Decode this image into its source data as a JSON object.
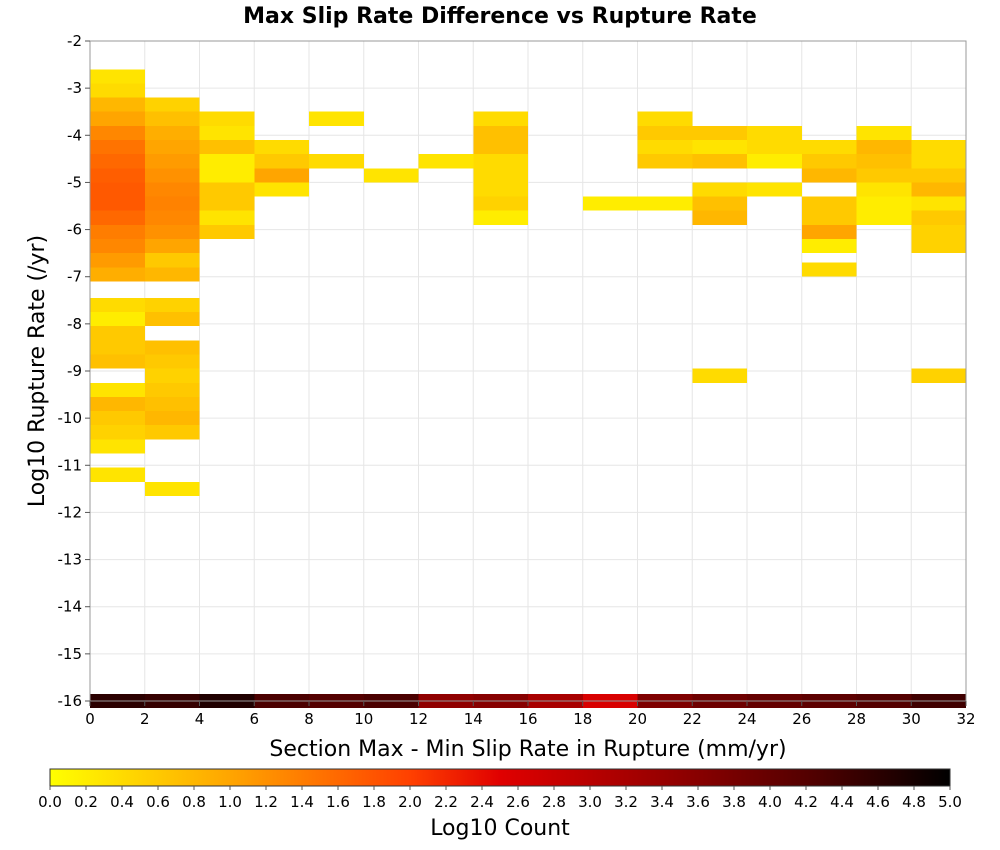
{
  "chart_data": {
    "type": "heatmap",
    "title": "Max Slip Rate Difference vs Rupture Rate",
    "xlabel": "Section Max - Min Slip Rate in Rupture (mm/yr)",
    "ylabel": "Log10 Rupture Rate (/yr)",
    "xlim": [
      0,
      32
    ],
    "ylim": [
      -16,
      -2
    ],
    "x_ticks": [
      0,
      2,
      4,
      6,
      8,
      10,
      12,
      14,
      16,
      18,
      20,
      22,
      24,
      26,
      28,
      30,
      32
    ],
    "y_ticks": [
      -16,
      -15,
      -14,
      -13,
      -12,
      -11,
      -10,
      -9,
      -8,
      -7,
      -6,
      -5,
      -4,
      -3,
      -2
    ],
    "grid": true,
    "x_bin_width": 2,
    "y_bin_height": 0.3,
    "colorbar": {
      "label": "Log10 Count",
      "range": [
        0.0,
        5.0
      ],
      "ticks": [
        "0.0",
        "0.2",
        "0.4",
        "0.6",
        "0.8",
        "1.0",
        "1.2",
        "1.4",
        "1.6",
        "1.8",
        "2.0",
        "2.2",
        "2.4",
        "2.6",
        "2.8",
        "3.0",
        "3.2",
        "3.4",
        "3.6",
        "3.8",
        "4.0",
        "4.2",
        "4.4",
        "4.6",
        "4.8",
        "5.0"
      ],
      "position": "bottom"
    },
    "cells": [
      {
        "x": 0,
        "y": -2.75,
        "v": 0.3
      },
      {
        "x": 0,
        "y": -3.05,
        "v": 0.4
      },
      {
        "x": 0,
        "y": -3.35,
        "v": 0.8
      },
      {
        "x": 0,
        "y": -3.65,
        "v": 1.0
      },
      {
        "x": 0,
        "y": -3.95,
        "v": 1.3
      },
      {
        "x": 0,
        "y": -4.25,
        "v": 1.5
      },
      {
        "x": 0,
        "y": -4.55,
        "v": 1.6
      },
      {
        "x": 0,
        "y": -4.85,
        "v": 1.7
      },
      {
        "x": 0,
        "y": -5.15,
        "v": 1.75
      },
      {
        "x": 0,
        "y": -5.45,
        "v": 1.75
      },
      {
        "x": 0,
        "y": -5.75,
        "v": 1.6
      },
      {
        "x": 0,
        "y": -6.05,
        "v": 1.4
      },
      {
        "x": 0,
        "y": -6.35,
        "v": 1.3
      },
      {
        "x": 0,
        "y": -6.65,
        "v": 1.1
      },
      {
        "x": 0,
        "y": -6.95,
        "v": 0.9
      },
      {
        "x": 0,
        "y": -7.6,
        "v": 0.4
      },
      {
        "x": 0,
        "y": -7.9,
        "v": 0.2
      },
      {
        "x": 0,
        "y": -8.2,
        "v": 0.6
      },
      {
        "x": 0,
        "y": -8.5,
        "v": 0.6
      },
      {
        "x": 0,
        "y": -8.8,
        "v": 0.7
      },
      {
        "x": 0,
        "y": -9.4,
        "v": 0.3
      },
      {
        "x": 0,
        "y": -9.7,
        "v": 0.8
      },
      {
        "x": 0,
        "y": -10.0,
        "v": 0.6
      },
      {
        "x": 0,
        "y": -10.3,
        "v": 0.5
      },
      {
        "x": 0,
        "y": -10.6,
        "v": 0.3
      },
      {
        "x": 0,
        "y": -11.2,
        "v": 0.3
      },
      {
        "x": 2,
        "y": -3.35,
        "v": 0.5
      },
      {
        "x": 2,
        "y": -3.65,
        "v": 0.7
      },
      {
        "x": 2,
        "y": -3.95,
        "v": 0.9
      },
      {
        "x": 2,
        "y": -4.25,
        "v": 1.0
      },
      {
        "x": 2,
        "y": -4.55,
        "v": 1.1
      },
      {
        "x": 2,
        "y": -4.85,
        "v": 1.2
      },
      {
        "x": 2,
        "y": -5.15,
        "v": 1.3
      },
      {
        "x": 2,
        "y": -5.45,
        "v": 1.35
      },
      {
        "x": 2,
        "y": -5.75,
        "v": 1.3
      },
      {
        "x": 2,
        "y": -6.05,
        "v": 1.2
      },
      {
        "x": 2,
        "y": -6.35,
        "v": 1.0
      },
      {
        "x": 2,
        "y": -6.65,
        "v": 0.6
      },
      {
        "x": 2,
        "y": -6.95,
        "v": 0.8
      },
      {
        "x": 2,
        "y": -7.6,
        "v": 0.5
      },
      {
        "x": 2,
        "y": -7.9,
        "v": 0.7
      },
      {
        "x": 2,
        "y": -8.5,
        "v": 0.7
      },
      {
        "x": 2,
        "y": -8.8,
        "v": 0.6
      },
      {
        "x": 2,
        "y": -9.1,
        "v": 0.5
      },
      {
        "x": 2,
        "y": -9.4,
        "v": 0.6
      },
      {
        "x": 2,
        "y": -9.7,
        "v": 0.7
      },
      {
        "x": 2,
        "y": -10.0,
        "v": 0.8
      },
      {
        "x": 2,
        "y": -10.3,
        "v": 0.6
      },
      {
        "x": 2,
        "y": -11.5,
        "v": 0.3
      },
      {
        "x": 4,
        "y": -3.65,
        "v": 0.4
      },
      {
        "x": 4,
        "y": -3.95,
        "v": 0.3
      },
      {
        "x": 4,
        "y": -4.25,
        "v": 0.7
      },
      {
        "x": 4,
        "y": -4.55,
        "v": 0.2
      },
      {
        "x": 4,
        "y": -4.85,
        "v": 0.2
      },
      {
        "x": 4,
        "y": -5.15,
        "v": 0.6
      },
      {
        "x": 4,
        "y": -5.45,
        "v": 0.6
      },
      {
        "x": 4,
        "y": -5.75,
        "v": 0.3
      },
      {
        "x": 4,
        "y": -6.05,
        "v": 0.6
      },
      {
        "x": 6,
        "y": -4.25,
        "v": 0.4
      },
      {
        "x": 6,
        "y": -4.55,
        "v": 0.6
      },
      {
        "x": 6,
        "y": -4.85,
        "v": 1.0
      },
      {
        "x": 6,
        "y": -5.15,
        "v": 0.3
      },
      {
        "x": 8,
        "y": -3.65,
        "v": 0.3
      },
      {
        "x": 8,
        "y": -4.55,
        "v": 0.4
      },
      {
        "x": 10,
        "y": -4.85,
        "v": 0.3
      },
      {
        "x": 12,
        "y": -4.55,
        "v": 0.3
      },
      {
        "x": 14,
        "y": -3.65,
        "v": 0.4
      },
      {
        "x": 14,
        "y": -3.95,
        "v": 0.7
      },
      {
        "x": 14,
        "y": -4.25,
        "v": 0.7
      },
      {
        "x": 14,
        "y": -4.55,
        "v": 0.4
      },
      {
        "x": 14,
        "y": -4.85,
        "v": 0.4
      },
      {
        "x": 14,
        "y": -5.15,
        "v": 0.4
      },
      {
        "x": 14,
        "y": -5.45,
        "v": 0.5
      },
      {
        "x": 14,
        "y": -5.75,
        "v": 0.2
      },
      {
        "x": 18,
        "y": -5.45,
        "v": 0.2
      },
      {
        "x": 20,
        "y": -3.65,
        "v": 0.4
      },
      {
        "x": 20,
        "y": -3.95,
        "v": 0.6
      },
      {
        "x": 20,
        "y": -4.25,
        "v": 0.4
      },
      {
        "x": 20,
        "y": -4.55,
        "v": 0.6
      },
      {
        "x": 20,
        "y": -5.45,
        "v": 0.2
      },
      {
        "x": 22,
        "y": -3.95,
        "v": 0.6
      },
      {
        "x": 22,
        "y": -4.25,
        "v": 0.3
      },
      {
        "x": 22,
        "y": -4.55,
        "v": 0.7
      },
      {
        "x": 22,
        "y": -5.15,
        "v": 0.4
      },
      {
        "x": 22,
        "y": -5.45,
        "v": 0.7
      },
      {
        "x": 22,
        "y": -5.75,
        "v": 0.8
      },
      {
        "x": 22,
        "y": -9.1,
        "v": 0.4
      },
      {
        "x": 24,
        "y": -3.95,
        "v": 0.4
      },
      {
        "x": 24,
        "y": -4.25,
        "v": 0.4
      },
      {
        "x": 24,
        "y": -4.55,
        "v": 0.2
      },
      {
        "x": 24,
        "y": -5.15,
        "v": 0.3
      },
      {
        "x": 26,
        "y": -4.25,
        "v": 0.4
      },
      {
        "x": 26,
        "y": -4.55,
        "v": 0.6
      },
      {
        "x": 26,
        "y": -4.85,
        "v": 0.8
      },
      {
        "x": 26,
        "y": -5.45,
        "v": 0.6
      },
      {
        "x": 26,
        "y": -5.75,
        "v": 0.6
      },
      {
        "x": 26,
        "y": -6.05,
        "v": 1.0
      },
      {
        "x": 26,
        "y": -6.35,
        "v": 0.2
      },
      {
        "x": 26,
        "y": -6.85,
        "v": 0.4
      },
      {
        "x": 28,
        "y": -3.95,
        "v": 0.3
      },
      {
        "x": 28,
        "y": -4.25,
        "v": 0.8
      },
      {
        "x": 28,
        "y": -4.55,
        "v": 0.7
      },
      {
        "x": 28,
        "y": -4.85,
        "v": 0.6
      },
      {
        "x": 28,
        "y": -5.15,
        "v": 0.3
      },
      {
        "x": 28,
        "y": -5.45,
        "v": 0.2
      },
      {
        "x": 28,
        "y": -5.75,
        "v": 0.2
      },
      {
        "x": 30,
        "y": -4.25,
        "v": 0.4
      },
      {
        "x": 30,
        "y": -4.55,
        "v": 0.4
      },
      {
        "x": 30,
        "y": -4.85,
        "v": 0.6
      },
      {
        "x": 30,
        "y": -5.15,
        "v": 0.8
      },
      {
        "x": 30,
        "y": -5.45,
        "v": 0.3
      },
      {
        "x": 30,
        "y": -5.75,
        "v": 0.6
      },
      {
        "x": 30,
        "y": -6.05,
        "v": 0.5
      },
      {
        "x": 30,
        "y": -6.35,
        "v": 0.5
      },
      {
        "x": 30,
        "y": -9.1,
        "v": 0.5
      },
      {
        "x": 0,
        "y": -16.0,
        "v": 4.6
      },
      {
        "x": 2,
        "y": -16.0,
        "v": 4.5
      },
      {
        "x": 4,
        "y": -16.0,
        "v": 4.7
      },
      {
        "x": 6,
        "y": -16.0,
        "v": 4.3
      },
      {
        "x": 8,
        "y": -16.0,
        "v": 4.2
      },
      {
        "x": 10,
        "y": -16.0,
        "v": 4.3
      },
      {
        "x": 12,
        "y": -16.0,
        "v": 3.5
      },
      {
        "x": 14,
        "y": -16.0,
        "v": 3.6
      },
      {
        "x": 16,
        "y": -16.0,
        "v": 3.2
      },
      {
        "x": 18,
        "y": -16.0,
        "v": 2.6
      },
      {
        "x": 20,
        "y": -16.0,
        "v": 3.7
      },
      {
        "x": 22,
        "y": -16.0,
        "v": 3.9
      },
      {
        "x": 24,
        "y": -16.0,
        "v": 4.0
      },
      {
        "x": 26,
        "y": -16.0,
        "v": 4.1
      },
      {
        "x": 28,
        "y": -16.0,
        "v": 4.2
      },
      {
        "x": 30,
        "y": -16.0,
        "v": 4.4
      }
    ]
  }
}
